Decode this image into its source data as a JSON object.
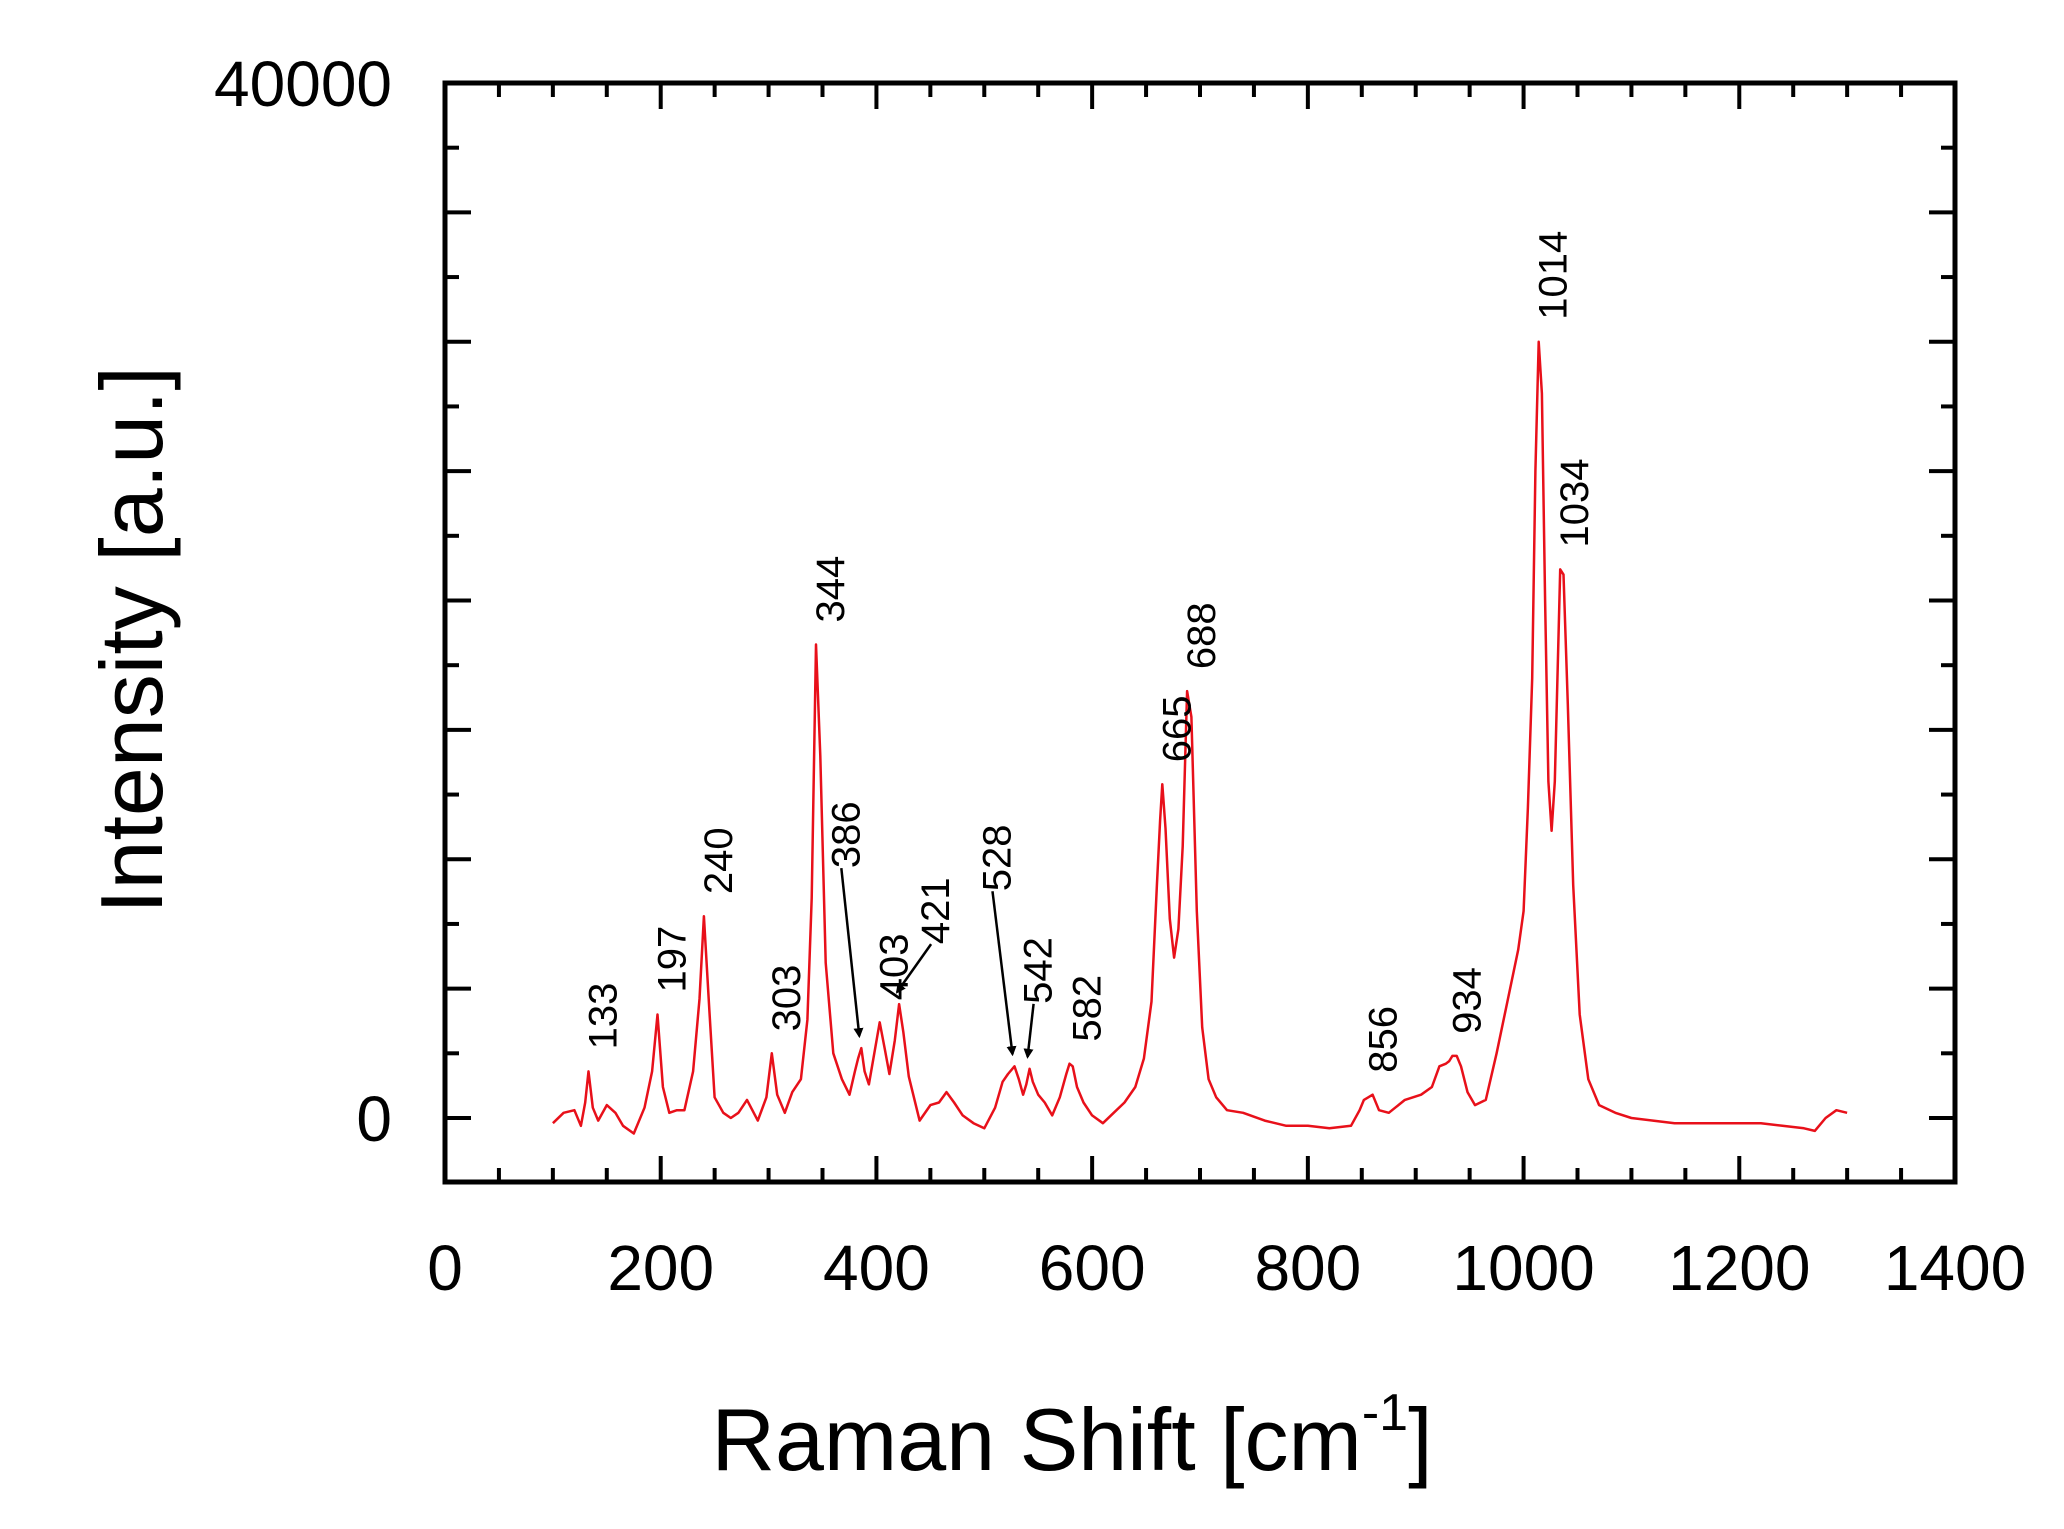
{
  "chart_data": {
    "type": "line",
    "title": "",
    "xlabel": "Raman Shift [cm",
    "xlabel_superscript": "-1",
    "xlabel_suffix": "]",
    "ylabel": "Intensity [a.u.]",
    "xlim": [
      0,
      1400
    ],
    "ylim": [
      0,
      40000
    ],
    "x_ticks": [
      0,
      200,
      400,
      600,
      800,
      1000,
      1200,
      1400
    ],
    "x_tick_labels": [
      "0",
      "200",
      "400",
      "600",
      "800",
      "1000",
      "1200",
      "1400"
    ],
    "y_tick_labels": [
      {
        "value": 40000,
        "label": "40000"
      },
      {
        "value": 0,
        "label": "0"
      }
    ],
    "grid": false,
    "line_color": "#e8101a",
    "series": [
      {
        "x": [
          100,
          110,
          120,
          126,
          130,
          133,
          137,
          142,
          150,
          158,
          165,
          175,
          185,
          192,
          197,
          202,
          208,
          215,
          222,
          230,
          236,
          240,
          245,
          250,
          258,
          265,
          272,
          280,
          290,
          298,
          303,
          308,
          315,
          322,
          330,
          336,
          340,
          344,
          348,
          353,
          360,
          368,
          375,
          380,
          383,
          386,
          389,
          393,
          398,
          403,
          408,
          412,
          417,
          421,
          425,
          430,
          440,
          450,
          458,
          465,
          472,
          480,
          490,
          500,
          510,
          517,
          522,
          528,
          532,
          536,
          539,
          542,
          545,
          550,
          556,
          563,
          570,
          576,
          579,
          582,
          586,
          592,
          600,
          610,
          620,
          630,
          640,
          648,
          655,
          660,
          663,
          665,
          668,
          672,
          676,
          680,
          684,
          688,
          692,
          697,
          702,
          708,
          715,
          725,
          740,
          760,
          780,
          800,
          820,
          840,
          848,
          852,
          856,
          860,
          866,
          875,
          890,
          905,
          915,
          922,
          928,
          931,
          934,
          938,
          942,
          948,
          955,
          965,
          975,
          985,
          995,
          1000,
          1004,
          1008,
          1011,
          1014,
          1017,
          1020,
          1023,
          1026,
          1029,
          1032,
          1034,
          1037,
          1041,
          1046,
          1052,
          1060,
          1070,
          1085,
          1100,
          1120,
          1140,
          1160,
          1180,
          1200,
          1220,
          1240,
          1260,
          1270,
          1280,
          1290,
          1300
        ],
        "y": [
          -200,
          200,
          300,
          -300,
          600,
          1800,
          400,
          -100,
          500,
          200,
          -300,
          -600,
          400,
          1800,
          4000,
          1200,
          200,
          300,
          300,
          1800,
          4600,
          7800,
          4200,
          800,
          200,
          0,
          200,
          700,
          -100,
          800,
          2500,
          900,
          200,
          1000,
          1500,
          3800,
          8500,
          18300,
          14000,
          6000,
          2500,
          1500,
          900,
          1800,
          2300,
          2700,
          1800,
          1300,
          2500,
          3700,
          2600,
          1700,
          3000,
          4400,
          3300,
          1600,
          -100,
          500,
          600,
          1000,
          600,
          100,
          -200,
          -400,
          400,
          1400,
          1700,
          2000,
          1500,
          900,
          1300,
          1900,
          1400,
          900,
          600,
          100,
          800,
          1700,
          2100,
          2000,
          1200,
          600,
          100,
          -200,
          200,
          600,
          1200,
          2300,
          4500,
          9000,
          11500,
          12900,
          11200,
          7700,
          6200,
          7300,
          10500,
          16500,
          15500,
          8000,
          3500,
          1500,
          800,
          300,
          200,
          -100,
          -300,
          -300,
          -400,
          -300,
          300,
          700,
          800,
          900,
          300,
          200,
          700,
          900,
          1200,
          2000,
          2100,
          2200,
          2400,
          2400,
          2000,
          1000,
          500,
          700,
          2500,
          4500,
          6500,
          8000,
          12000,
          17000,
          25000,
          30000,
          28000,
          20000,
          13000,
          11100,
          13000,
          18000,
          21200,
          21000,
          16000,
          9000,
          4000,
          1500,
          500,
          200,
          0,
          -100,
          -200,
          -200,
          -200,
          -200,
          -200,
          -300,
          -400,
          -500,
          0,
          300,
          200
        ]
      }
    ],
    "annotations": [
      {
        "text": "133",
        "x": 133,
        "y": 1800,
        "arrow": false
      },
      {
        "text": "197",
        "x": 197,
        "y": 4000,
        "arrow": false
      },
      {
        "text": "240",
        "x": 240,
        "y": 7800,
        "arrow": false
      },
      {
        "text": "303",
        "x": 303,
        "y": 2500,
        "arrow": false
      },
      {
        "text": "344",
        "x": 344,
        "y": 18300,
        "arrow": false
      },
      {
        "text": "386",
        "x": 386,
        "y": 2700,
        "arrow": true
      },
      {
        "text": "403",
        "x": 403,
        "y": 3700,
        "arrow": false
      },
      {
        "text": "421",
        "x": 421,
        "y": 4400,
        "arrow": true
      },
      {
        "text": "528",
        "x": 528,
        "y": 2000,
        "arrow": true
      },
      {
        "text": "542",
        "x": 542,
        "y": 1900,
        "arrow": true
      },
      {
        "text": "582",
        "x": 582,
        "y": 2100,
        "arrow": false
      },
      {
        "text": "665",
        "x": 665,
        "y": 12900,
        "arrow": false
      },
      {
        "text": "688",
        "x": 688,
        "y": 16500,
        "arrow": false
      },
      {
        "text": "856",
        "x": 856,
        "y": 900,
        "arrow": false
      },
      {
        "text": "934",
        "x": 934,
        "y": 2400,
        "arrow": false
      },
      {
        "text": "1014",
        "x": 1014,
        "y": 30000,
        "arrow": false
      },
      {
        "text": "1034",
        "x": 1034,
        "y": 21200,
        "arrow": false
      }
    ]
  }
}
